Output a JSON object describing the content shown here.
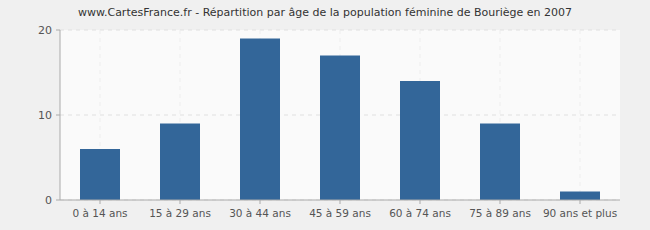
{
  "chart_data": {
    "type": "bar",
    "title": "www.CartesFrance.fr - Répartition par âge de la population féminine de Bouriège en 2007",
    "categories": [
      "0 à 14 ans",
      "15 à 29 ans",
      "30 à 44 ans",
      "45 à 59 ans",
      "60 à 74 ans",
      "75 à 89 ans",
      "90 ans et plus"
    ],
    "values": [
      6,
      9,
      19,
      17,
      14,
      9,
      1
    ],
    "color": "#336699",
    "ylim": [
      0,
      20
    ],
    "yticks": [
      0,
      10,
      20
    ],
    "grid": true
  }
}
